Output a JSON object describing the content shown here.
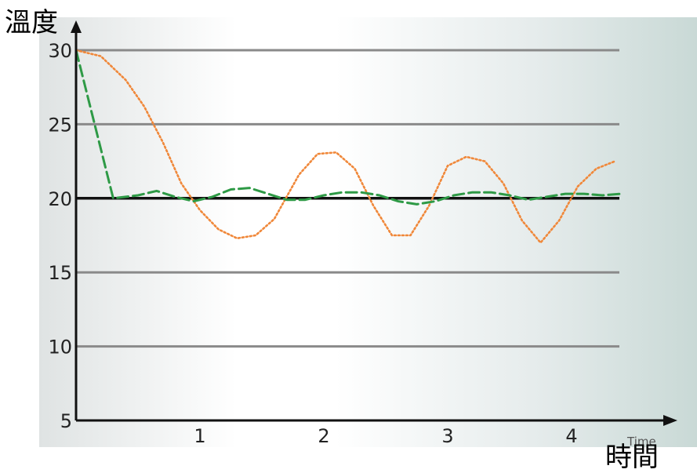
{
  "chart_data": {
    "type": "line",
    "xlabel": "時間",
    "ylabel": "溫度",
    "x_axis_word": "Time",
    "xlim": [
      0,
      4.4
    ],
    "ylim": [
      5,
      30
    ],
    "x_ticks": [
      1,
      2,
      3,
      4
    ],
    "y_ticks": [
      30,
      25,
      20,
      15,
      10,
      5
    ],
    "gridlines_y": [
      30,
      25,
      20,
      15,
      10
    ],
    "reference_line": 20,
    "series": [
      {
        "color": "#f0883a",
        "style": "dotted",
        "x": [
          0,
          0.2,
          0.4,
          0.55,
          0.7,
          0.85,
          1.0,
          1.15,
          1.3,
          1.45,
          1.6,
          1.8,
          1.95,
          2.1,
          2.25,
          2.4,
          2.55,
          2.7,
          2.85,
          3.0,
          3.15,
          3.3,
          3.45,
          3.6,
          3.75,
          3.9,
          4.05,
          4.2,
          4.35
        ],
        "y": [
          30,
          29.6,
          28.0,
          26.2,
          23.8,
          21.0,
          19.2,
          17.9,
          17.3,
          17.5,
          18.6,
          21.6,
          23.0,
          23.1,
          22.0,
          19.5,
          17.5,
          17.5,
          19.5,
          22.2,
          22.8,
          22.5,
          21.0,
          18.5,
          17.0,
          18.5,
          20.8,
          22.0,
          22.5
        ]
      },
      {
        "color": "#2e9a46",
        "style": "solid-dashed",
        "x": [
          0,
          0.3,
          0.5,
          0.65,
          0.8,
          0.95,
          1.1,
          1.25,
          1.4,
          1.55,
          1.7,
          1.85,
          2.0,
          2.15,
          2.3,
          2.45,
          2.6,
          2.75,
          2.9,
          3.05,
          3.2,
          3.35,
          3.5,
          3.65,
          3.8,
          3.95,
          4.1,
          4.25,
          4.4
        ],
        "y": [
          30,
          20.0,
          20.2,
          20.5,
          20.1,
          19.8,
          20.1,
          20.6,
          20.7,
          20.3,
          19.9,
          19.9,
          20.2,
          20.4,
          20.4,
          20.2,
          19.8,
          19.6,
          19.8,
          20.2,
          20.4,
          20.4,
          20.2,
          19.9,
          20.1,
          20.3,
          20.3,
          20.2,
          20.3
        ]
      }
    ],
    "grid": true,
    "legend": "none"
  }
}
